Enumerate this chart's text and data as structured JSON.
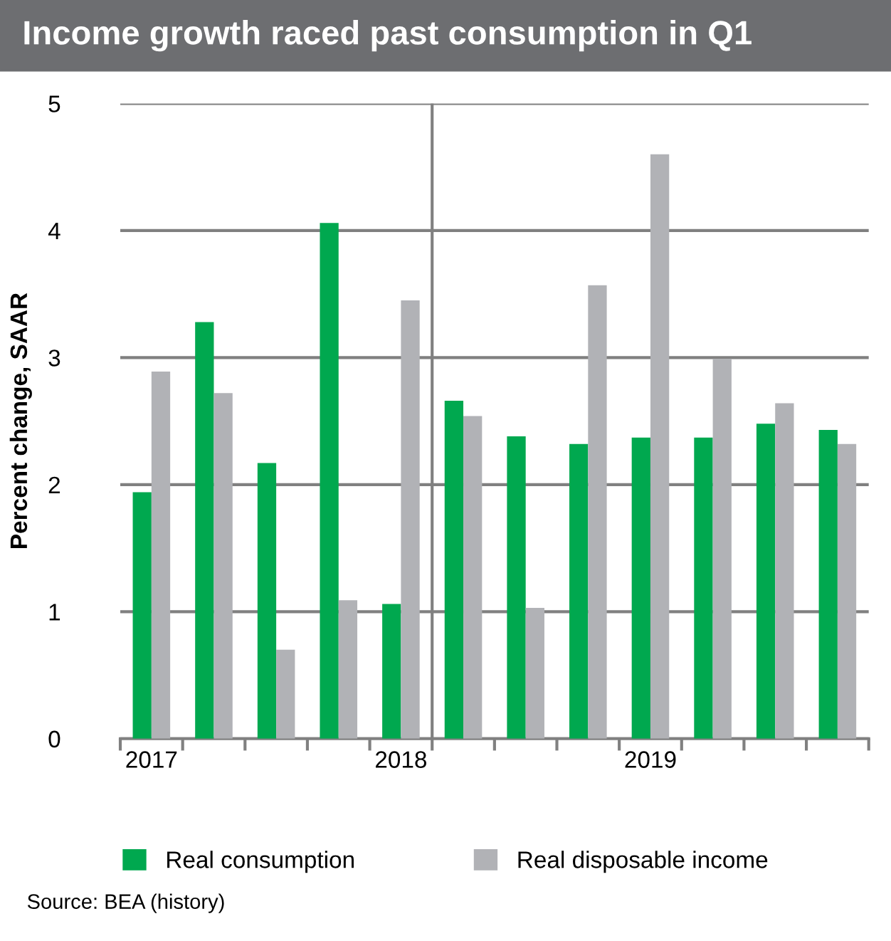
{
  "chart_data": {
    "type": "bar",
    "title": "Income growth raced past consumption in Q1",
    "ylabel": "Percent change, SAAR",
    "categories": [
      "2017",
      null,
      null,
      null,
      "2018",
      null,
      null,
      null,
      "2019",
      null,
      null,
      null
    ],
    "series": [
      {
        "name": "Real consumption",
        "color": "#00a84f",
        "values": [
          1.94,
          3.28,
          2.17,
          4.06,
          1.06,
          2.66,
          2.38,
          2.32,
          2.37,
          2.37,
          2.48,
          2.43
        ]
      },
      {
        "name": "Real disposable income",
        "color": "#b1b2b6",
        "values": [
          2.89,
          2.72,
          0.7,
          1.09,
          3.45,
          2.54,
          1.03,
          3.57,
          4.6,
          2.99,
          2.64,
          2.32
        ]
      }
    ],
    "ylim": [
      0,
      5
    ],
    "yticks": [
      0,
      1,
      2,
      3,
      4,
      5
    ],
    "grid": "y",
    "legend": "bottom",
    "annotations": [
      "Source: BEA (history)"
    ]
  }
}
